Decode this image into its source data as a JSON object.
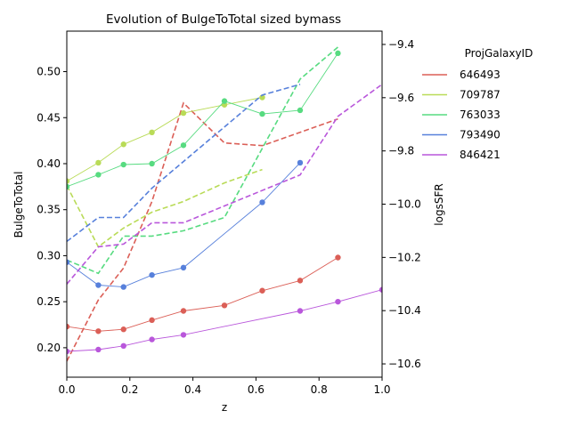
{
  "chart_data": {
    "type": "line",
    "title": "Evolution of BulgeToTotal sized bymass",
    "xlabel": "z",
    "ylabel_left": "BulgeToTotal",
    "ylabel_right": "logsSFR",
    "xlim": [
      0.0,
      1.0
    ],
    "ylim_left": [
      0.168,
      0.544
    ],
    "ylim_right": [
      -10.65,
      -9.35
    ],
    "x_ticks": [
      "0.0",
      "0.2",
      "0.4",
      "0.6",
      "0.8",
      "1.0"
    ],
    "x_tick_values": [
      0.0,
      0.2,
      0.4,
      0.6,
      0.8,
      1.0
    ],
    "y_left_ticks": [
      "0.20",
      "0.25",
      "0.30",
      "0.35",
      "0.40",
      "0.45",
      "0.50"
    ],
    "y_left_tick_values": [
      0.2,
      0.25,
      0.3,
      0.35,
      0.4,
      0.45,
      0.5
    ],
    "y_right_ticks": [
      "−9.4",
      "−9.6",
      "−9.8",
      "−10.0",
      "−10.2",
      "−10.4",
      "−10.6"
    ],
    "y_right_tick_values": [
      -9.4,
      -9.6,
      -9.8,
      -10.0,
      -10.2,
      -10.4,
      -10.6
    ],
    "grid": false,
    "legend": {
      "title": "ProjGalaxyID",
      "placement": "outside-right-top"
    },
    "series": [
      {
        "name": "646493",
        "color": "#db5f57",
        "x": [
          0.0,
          0.1,
          0.18,
          0.27,
          0.37,
          0.5,
          0.62,
          0.74,
          0.86
        ],
        "bulge_to_total": [
          0.223,
          0.218,
          0.22,
          0.23,
          0.24,
          0.246,
          0.262,
          0.273,
          0.298
        ],
        "logsSFR": [
          -10.59,
          -10.36,
          -10.24,
          -9.99,
          -9.62,
          -9.77,
          -9.78,
          -9.73,
          -9.68
        ]
      },
      {
        "name": "709787",
        "color": "#b9db57",
        "x": [
          0.0,
          0.1,
          0.18,
          0.27,
          0.37,
          0.5,
          0.62
        ],
        "bulge_to_total": [
          0.381,
          0.401,
          0.421,
          0.434,
          0.455,
          0.464,
          0.472
        ],
        "logsSFR": [
          -9.93,
          -10.16,
          -10.09,
          -10.03,
          -9.99,
          -9.92,
          -9.87
        ]
      },
      {
        "name": "763033",
        "color": "#57db80",
        "x": [
          0.0,
          0.1,
          0.18,
          0.27,
          0.37,
          0.5,
          0.62,
          0.74,
          0.86
        ],
        "bulge_to_total": [
          0.375,
          0.388,
          0.399,
          0.4,
          0.42,
          0.468,
          0.454,
          0.458,
          0.52
        ],
        "logsSFR": [
          -10.21,
          -10.26,
          -10.12,
          -10.12,
          -10.1,
          -10.05,
          -9.79,
          -9.53,
          -9.41
        ]
      },
      {
        "name": "793490",
        "color": "#5780db",
        "x": [
          0.0,
          0.1,
          0.18,
          0.27,
          0.37,
          0.62,
          0.74
        ],
        "bulge_to_total": [
          0.293,
          0.268,
          0.266,
          0.279,
          0.287,
          0.358,
          0.401
        ],
        "logsSFR": [
          -10.14,
          -10.05,
          -10.05,
          -9.94,
          -9.84,
          -9.59,
          -9.55
        ]
      },
      {
        "name": "846421",
        "color": "#b957db",
        "x": [
          0.0,
          0.1,
          0.18,
          0.27,
          0.37,
          0.74,
          0.86,
          1.0
        ],
        "bulge_to_total": [
          0.196,
          0.198,
          0.202,
          0.209,
          0.214,
          0.24,
          0.25,
          0.263
        ],
        "logsSFR": [
          -10.3,
          -10.16,
          -10.15,
          -10.07,
          -10.07,
          -9.89,
          -9.67,
          -9.55
        ]
      }
    ]
  }
}
